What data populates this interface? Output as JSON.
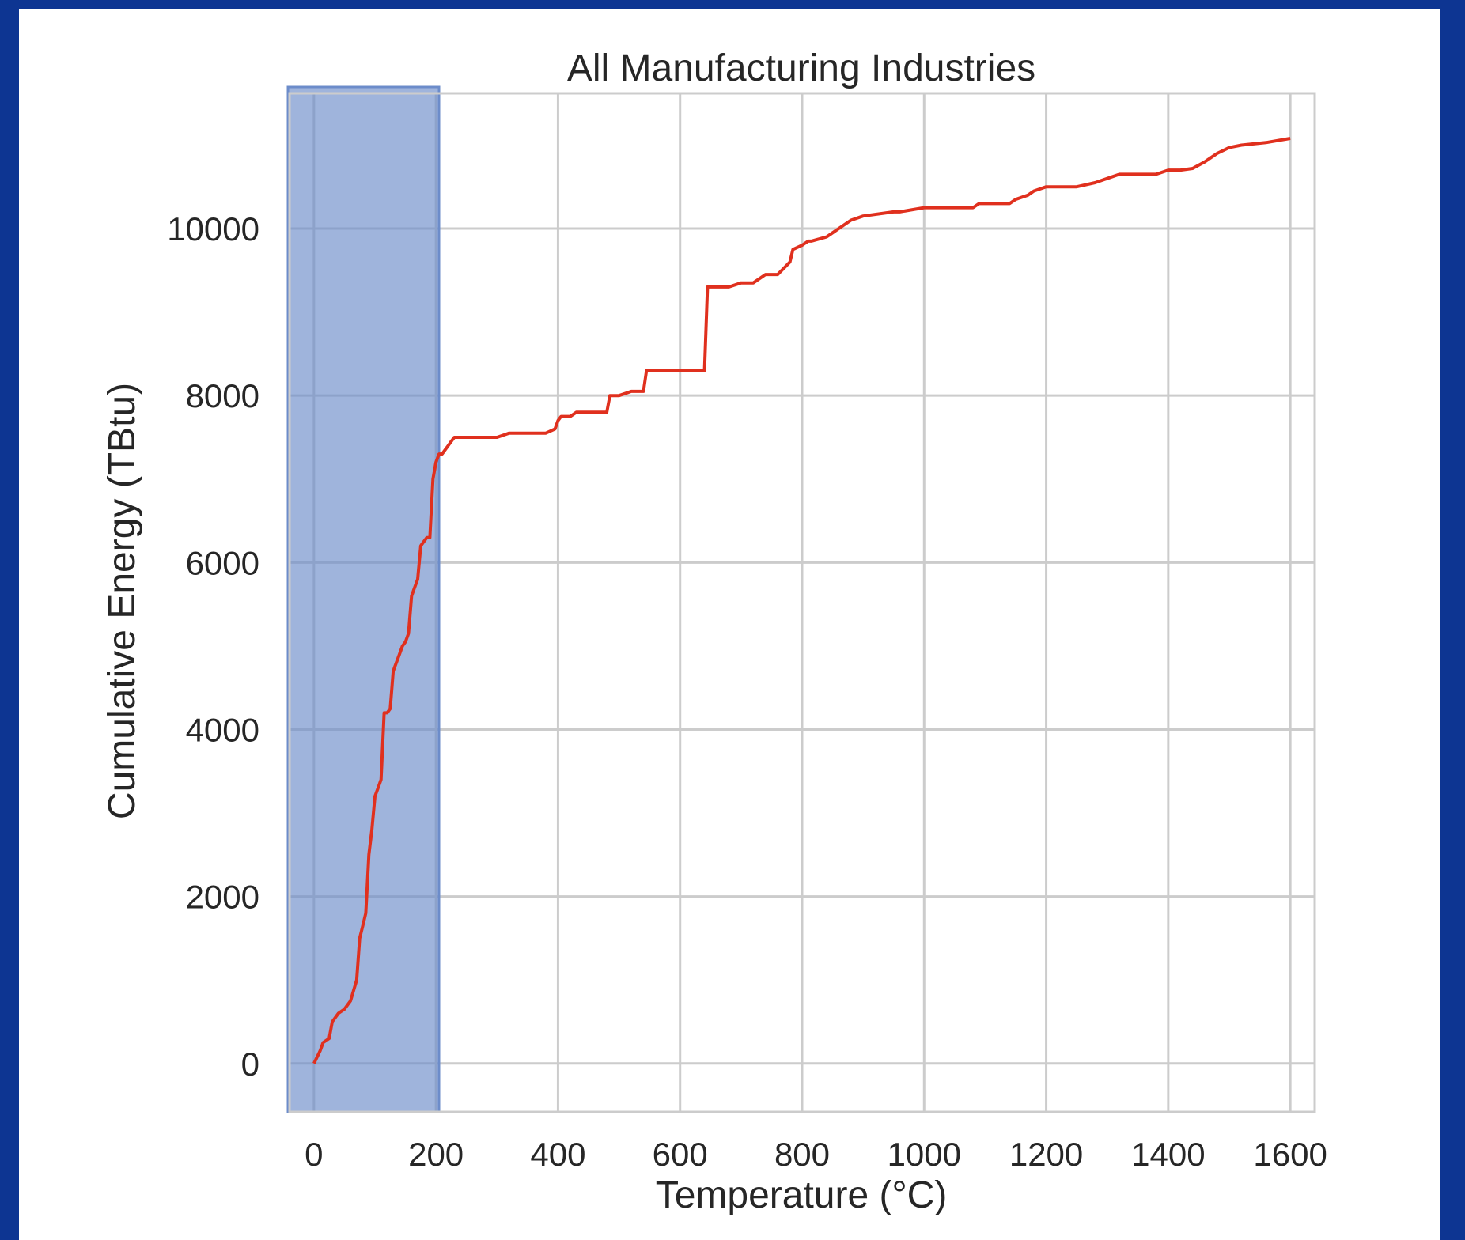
{
  "chart_data": {
    "type": "line",
    "title": "All Manufacturing Industries",
    "xlabel": "Temperature (°C)",
    "ylabel": "Cumulative Energy (TBtu)",
    "xlim": [
      -40,
      1640
    ],
    "ylim": [
      -580,
      11620
    ],
    "xticks": [
      0,
      200,
      400,
      600,
      800,
      1000,
      1200,
      1400,
      1600
    ],
    "yticks": [
      0,
      2000,
      4000,
      6000,
      8000,
      10000
    ],
    "grid": true,
    "legend": "none",
    "highlight_band": {
      "x": [
        -75,
        205
      ],
      "color": "#6c8cca"
    },
    "colors": {
      "series": "#e0301e",
      "band": "#6c8cca",
      "grid": "#cccccc",
      "background": "#0d3592"
    },
    "series": [
      {
        "x": [
          0,
          10,
          15,
          25,
          30,
          40,
          50,
          60,
          70,
          75,
          80,
          85,
          90,
          95,
          100,
          105,
          110,
          115,
          120,
          125,
          130,
          135,
          140,
          145,
          150,
          155,
          160,
          165,
          170,
          175,
          180,
          185,
          190,
          195,
          200,
          205,
          210,
          215,
          220,
          225,
          230,
          240,
          250,
          260,
          280,
          300,
          320,
          350,
          380,
          395,
          400,
          405,
          420,
          430,
          440,
          460,
          480,
          485,
          500,
          520,
          540,
          545,
          560,
          580,
          600,
          620,
          640,
          645,
          650,
          660,
          680,
          700,
          720,
          740,
          750,
          760,
          780,
          785,
          800,
          810,
          815,
          840,
          850,
          860,
          880,
          900,
          950,
          960,
          1000,
          1050,
          1080,
          1090,
          1140,
          1150,
          1170,
          1180,
          1200,
          1250,
          1280,
          1300,
          1320,
          1350,
          1380,
          1400,
          1420,
          1440,
          1460,
          1480,
          1500,
          1520,
          1560,
          1600
        ],
        "y": [
          0,
          150,
          250,
          300,
          500,
          600,
          650,
          750,
          1000,
          1500,
          1650,
          1800,
          2500,
          2800,
          3200,
          3300,
          3400,
          4200,
          4200,
          4250,
          4700,
          4800,
          4900,
          5000,
          5050,
          5150,
          5600,
          5700,
          5800,
          6200,
          6250,
          6300,
          6300,
          7000,
          7200,
          7300,
          7300,
          7350,
          7400,
          7450,
          7500,
          7500,
          7500,
          7500,
          7500,
          7500,
          7550,
          7550,
          7550,
          7600,
          7700,
          7750,
          7750,
          7800,
          7800,
          7800,
          7800,
          8000,
          8000,
          8050,
          8050,
          8300,
          8300,
          8300,
          8300,
          8300,
          8300,
          9300,
          9300,
          9300,
          9300,
          9350,
          9350,
          9450,
          9450,
          9450,
          9600,
          9750,
          9800,
          9850,
          9850,
          9900,
          9950,
          10000,
          10100,
          10150,
          10200,
          10200,
          10250,
          10250,
          10250,
          10300,
          10300,
          10350,
          10400,
          10450,
          10500,
          10500,
          10550,
          10600,
          10650,
          10650,
          10650,
          10700,
          10700,
          10720,
          10800,
          10900,
          10970,
          11000,
          11030,
          11080
        ]
      }
    ]
  }
}
